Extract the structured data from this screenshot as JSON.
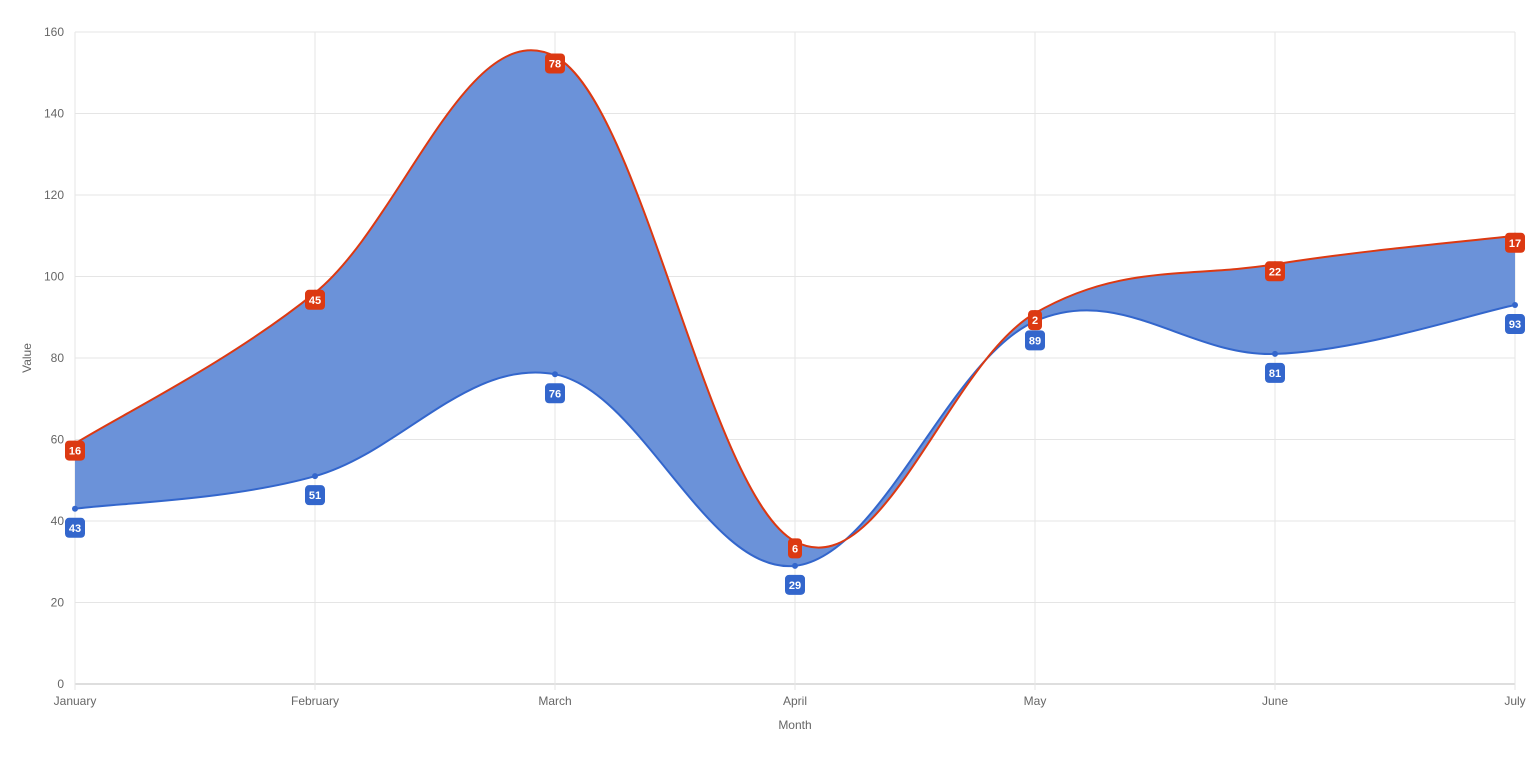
{
  "chart_data": {
    "type": "area",
    "categories": [
      "January",
      "February",
      "March",
      "April",
      "May",
      "June",
      "July"
    ],
    "xlabel": "Month",
    "ylabel": "Value",
    "ylim": [
      0,
      160
    ],
    "yticks": [
      0,
      20,
      40,
      60,
      80,
      100,
      120,
      140,
      160
    ],
    "grid": true,
    "legend": "none",
    "series": [
      {
        "values": [
          43,
          51,
          76,
          29,
          89,
          81,
          93
        ],
        "labels": [
          "43",
          "51",
          "76",
          "29",
          "89",
          "81",
          "93"
        ],
        "color": "#3366cc"
      },
      {
        "stacked_on": 0,
        "values": [
          16,
          45,
          78,
          6,
          2,
          22,
          17
        ],
        "totals": [
          59,
          96,
          154,
          35,
          91,
          103,
          110
        ],
        "labels": [
          "16",
          "45",
          "78",
          "6",
          "2",
          "22",
          "17"
        ],
        "color": "#dc3912"
      }
    ],
    "fill_color": "#6b92d9"
  }
}
